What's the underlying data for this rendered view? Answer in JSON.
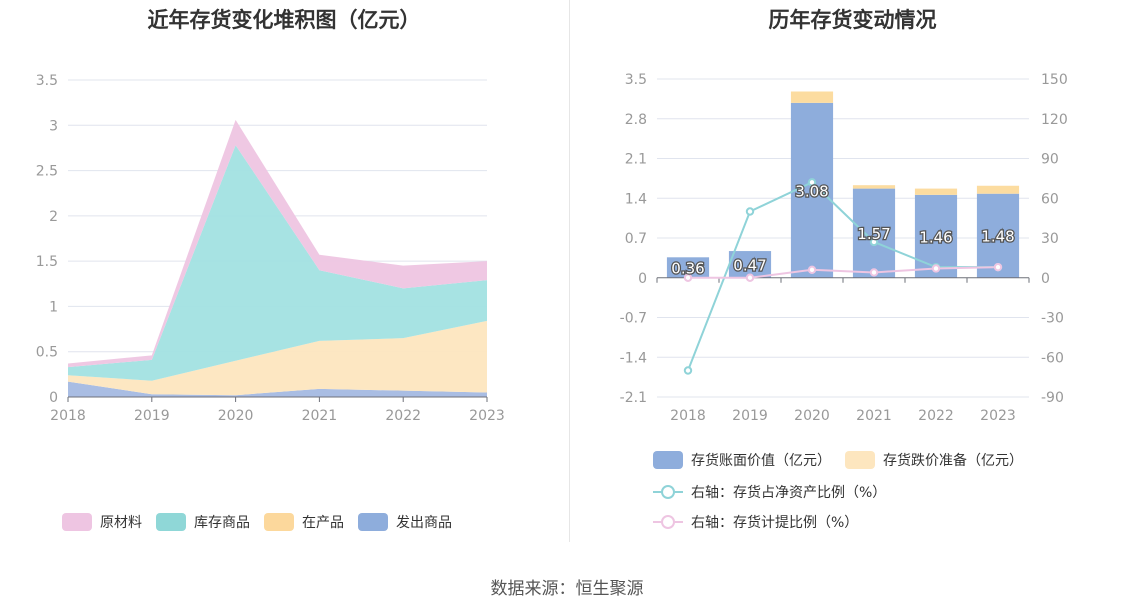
{
  "footer": {
    "source": "数据来源：恒生聚源"
  },
  "colors": {
    "raw_materials": "#eec5e2",
    "inventory_goods": "#a2e2e2",
    "wip": "#fde6bf",
    "shipped_goods": "#a4b9e2",
    "book_value": "#8eaddc",
    "impairment": "#fcdca0",
    "ratio_net_assets": "#8fd3d8",
    "ratio_provision": "#eec5e2",
    "grid": "#e0e4ee",
    "axis_text": "#999999"
  },
  "chart_data": [
    {
      "type": "area",
      "stacked": true,
      "title": "近年存货变化堆积图（亿元）",
      "x": [
        "2018",
        "2019",
        "2020",
        "2021",
        "2022",
        "2023"
      ],
      "ylim": [
        0,
        3.5
      ],
      "yticks": [
        "0",
        "0.5",
        "1",
        "1.5",
        "2",
        "2.5",
        "3",
        "3.5"
      ],
      "grid": true,
      "legend_position": "bottom",
      "series": [
        {
          "name": "发出商品",
          "values": [
            0.17,
            0.03,
            0.02,
            0.09,
            0.07,
            0.05
          ]
        },
        {
          "name": "在产品",
          "values": [
            0.07,
            0.15,
            0.38,
            0.53,
            0.58,
            0.79
          ]
        },
        {
          "name": "库存商品",
          "values": [
            0.09,
            0.23,
            2.38,
            0.78,
            0.55,
            0.45
          ]
        },
        {
          "name": "原材料",
          "values": [
            0.04,
            0.05,
            0.28,
            0.17,
            0.25,
            0.21
          ]
        }
      ],
      "legend_order": [
        "原材料",
        "库存商品",
        "在产品",
        "发出商品"
      ]
    },
    {
      "type": "bar",
      "stacked": true,
      "title": "历年存货变动情况",
      "categories": [
        "2018",
        "2019",
        "2020",
        "2021",
        "2022",
        "2023"
      ],
      "ylim_left": [
        -2.1,
        3.5
      ],
      "yticks_left": [
        "-2.1",
        "-1.4",
        "-0.7",
        "0",
        "0.7",
        "1.4",
        "2.1",
        "2.8",
        "3.5"
      ],
      "ylim_right": [
        -90,
        150
      ],
      "yticks_right": [
        "-90",
        "-60",
        "-30",
        "0",
        "30",
        "60",
        "90",
        "120",
        "150"
      ],
      "grid": true,
      "legend_position": "bottom",
      "series": [
        {
          "name": "存货账面价值（亿元）",
          "kind": "bar",
          "axis": "left",
          "values": [
            0.36,
            0.47,
            3.08,
            1.57,
            1.46,
            1.48
          ],
          "labels": [
            "0.36",
            "0.47",
            "3.08",
            "1.57",
            "1.46",
            "1.48"
          ]
        },
        {
          "name": "存货跌价准备（亿元）",
          "kind": "bar",
          "axis": "left",
          "values": [
            0.0,
            0.0,
            0.2,
            0.06,
            0.11,
            0.14
          ]
        },
        {
          "name": "右轴：存货占净资产比例（%）",
          "kind": "line",
          "axis": "right",
          "values": [
            -70,
            50,
            72,
            27,
            8,
            8
          ]
        },
        {
          "name": "右轴：存货计提比例（%）",
          "kind": "line",
          "axis": "right",
          "values": [
            0,
            0,
            6,
            4,
            7,
            8
          ]
        }
      ]
    }
  ]
}
